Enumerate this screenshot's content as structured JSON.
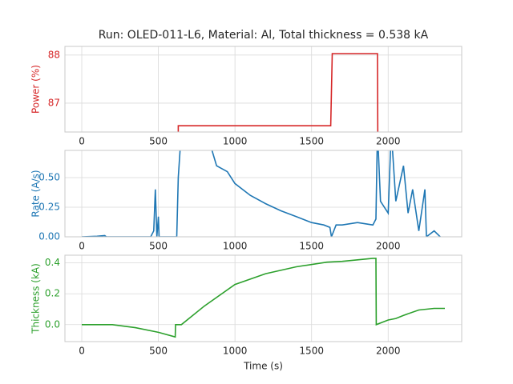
{
  "chart_data": [
    {
      "type": "line",
      "title": "Run: OLED-011-L6, Material: Al, Total thickness = 0.538 kA",
      "ylabel": "Power (%)",
      "color": "#d62728",
      "x": [
        630,
        630,
        1625,
        1635,
        1930,
        1932
      ],
      "values": [
        86.4,
        86.53,
        86.53,
        88.03,
        88.03,
        86.4
      ],
      "xlim": [
        -110,
        2480
      ],
      "ylim": [
        86.4,
        88.18
      ],
      "xticks": [
        0,
        500,
        1000,
        1500,
        2000
      ],
      "yticks": [
        87,
        88
      ],
      "grid": true
    },
    {
      "type": "line",
      "ylabel": "Rate (A/s)",
      "color": "#1f77b4",
      "x": [
        0,
        100,
        150,
        160,
        450,
        470,
        480,
        490,
        500,
        505,
        620,
        630,
        650,
        850,
        880,
        950,
        1000,
        1100,
        1200,
        1300,
        1400,
        1500,
        1580,
        1620,
        1630,
        1660,
        1700,
        1800,
        1900,
        1920,
        1930,
        1950,
        2000,
        2020,
        2050,
        2100,
        2130,
        2160,
        2200,
        2240,
        2250,
        2300,
        2340
      ],
      "values": [
        0,
        0.005,
        0.01,
        0,
        0,
        0.05,
        0.4,
        0,
        0.17,
        0,
        0,
        0.5,
        0.9,
        0.73,
        0.6,
        0.55,
        0.45,
        0.35,
        0.28,
        0.22,
        0.17,
        0.12,
        0.1,
        0.08,
        0,
        0.1,
        0.1,
        0.12,
        0.1,
        0.15,
        0.9,
        0.3,
        0.2,
        0.9,
        0.3,
        0.6,
        0.2,
        0.4,
        0.05,
        0.4,
        0,
        0.05,
        0
      ],
      "xlim": [
        -110,
        2480
      ],
      "ylim": [
        0,
        0.73
      ],
      "xticks": [
        0,
        500,
        1000,
        1500,
        2000
      ],
      "yticks": [
        {
          "value": 0,
          "label": "0.00"
        },
        0.25,
        {
          "value": 0.5,
          "label": "0.50"
        }
      ],
      "grid": true
    },
    {
      "type": "line",
      "ylabel": "Thickness (kA)",
      "xlabel": "Time (s)",
      "color": "#2ca02c",
      "x": [
        0,
        200,
        350,
        500,
        610,
        612,
        650,
        800,
        1000,
        1200,
        1400,
        1600,
        1700,
        1900,
        1920,
        1922,
        2000,
        2050,
        2100,
        2200,
        2300,
        2370
      ],
      "values": [
        0,
        0,
        -0.02,
        -0.05,
        -0.08,
        0,
        0,
        0.12,
        0.26,
        0.33,
        0.375,
        0.405,
        0.41,
        0.43,
        0.43,
        0,
        0.03,
        0.04,
        0.06,
        0.095,
        0.105,
        0.105
      ],
      "xlim": [
        -110,
        2480
      ],
      "ylim": [
        -0.11,
        0.45
      ],
      "xticks": [
        0,
        500,
        1000,
        1500,
        2000
      ],
      "yticks": [
        {
          "value": 0,
          "label": "0.0"
        },
        0.2,
        0.4
      ],
      "grid": true
    }
  ]
}
